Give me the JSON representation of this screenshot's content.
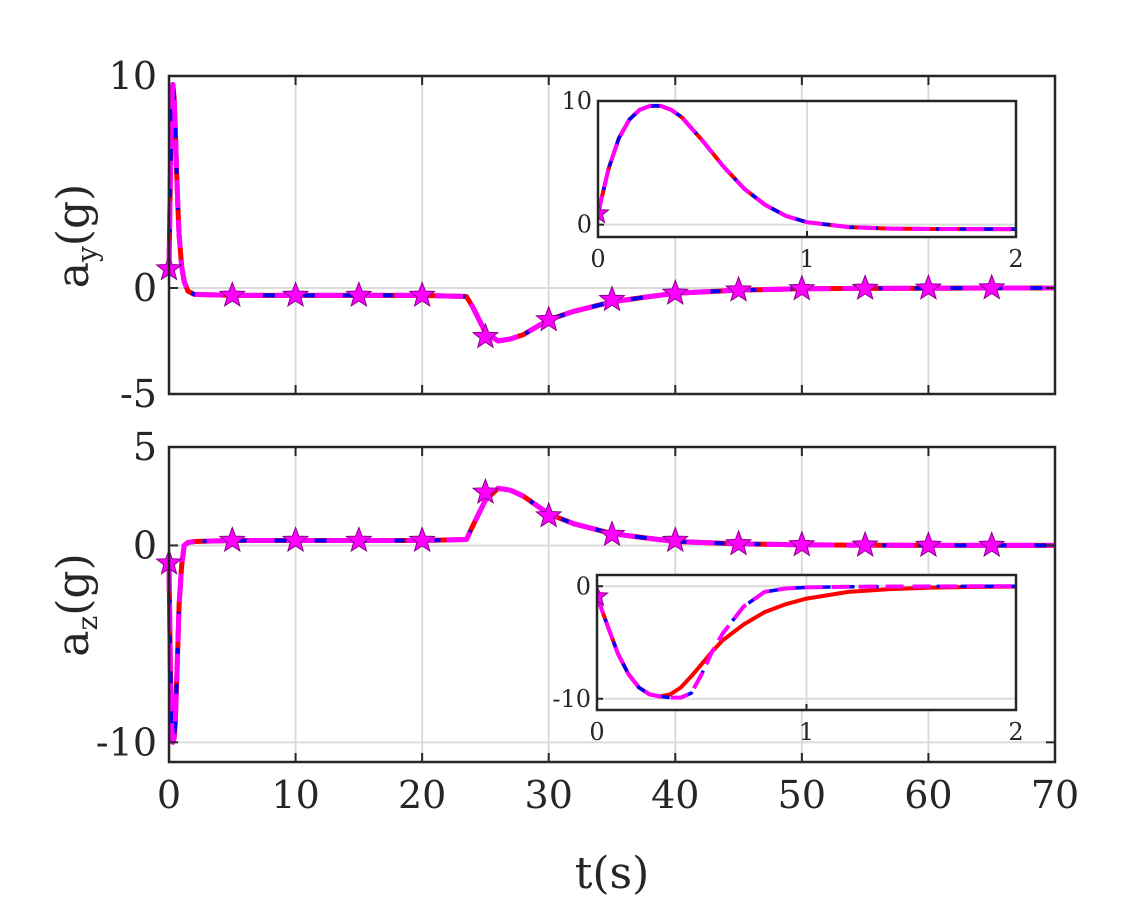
{
  "chart_data": [
    {
      "type": "line",
      "id": "top",
      "ylabel_main": "a",
      "ylabel_sub": "y",
      "ylabel_unit": "(g)",
      "xlim": [
        0,
        70
      ],
      "ylim": [
        -5,
        10
      ],
      "xticks": [
        0,
        10,
        20,
        30,
        40,
        50,
        60,
        70
      ],
      "yticks": [
        -5,
        0,
        10
      ],
      "ytick_labels": [
        "-5",
        "0",
        "10"
      ],
      "grid": true,
      "series": [
        {
          "color": "#ff0000",
          "style": "solid",
          "marker": "none",
          "x": [
            0,
            0.1,
            0.2,
            0.3,
            0.4,
            0.5,
            0.6,
            0.7,
            0.8,
            1,
            1.2,
            1.5,
            2,
            5,
            10,
            15,
            20,
            23.5,
            24,
            25,
            26,
            27,
            28,
            30,
            32,
            35,
            38,
            40,
            45,
            50,
            55,
            60,
            65,
            70
          ],
          "y": [
            0.9,
            5,
            8.5,
            9.6,
            9.0,
            7.5,
            5.5,
            3.8,
            2.5,
            1.0,
            0.3,
            -0.15,
            -0.3,
            -0.35,
            -0.35,
            -0.35,
            -0.35,
            -0.4,
            -0.9,
            -2.1,
            -2.5,
            -2.4,
            -2.2,
            -1.5,
            -1.1,
            -0.65,
            -0.4,
            -0.25,
            -0.1,
            -0.04,
            -0.02,
            -0.01,
            0,
            0
          ]
        },
        {
          "color": "#0000ff",
          "style": "dashed",
          "marker": "none",
          "x": [
            0,
            0.1,
            0.2,
            0.3,
            0.4,
            0.5,
            0.6,
            0.7,
            0.8,
            1,
            1.2,
            1.5,
            2,
            5,
            10,
            15,
            20,
            23.5,
            24,
            25,
            26,
            27,
            28,
            30,
            32,
            35,
            38,
            40,
            45,
            50,
            55,
            60,
            65,
            70
          ],
          "y": [
            0.9,
            5,
            8.5,
            9.6,
            9.0,
            7.5,
            5.5,
            3.8,
            2.5,
            1.0,
            0.3,
            -0.15,
            -0.3,
            -0.35,
            -0.35,
            -0.35,
            -0.35,
            -0.4,
            -0.9,
            -2.1,
            -2.5,
            -2.4,
            -2.2,
            -1.5,
            -1.1,
            -0.65,
            -0.4,
            -0.25,
            -0.1,
            -0.04,
            -0.02,
            -0.01,
            0,
            0
          ]
        },
        {
          "color": "#ff00ff",
          "style": "dashed",
          "marker": "star",
          "x": [
            0,
            0.1,
            0.2,
            0.3,
            0.4,
            0.5,
            0.6,
            0.7,
            0.8,
            1,
            1.2,
            1.5,
            2,
            5,
            10,
            15,
            20,
            23.5,
            24,
            25,
            26,
            27,
            28,
            30,
            32,
            35,
            38,
            40,
            45,
            50,
            55,
            60,
            65,
            70
          ],
          "y": [
            0.9,
            5,
            8.5,
            9.6,
            9.0,
            7.5,
            5.5,
            3.8,
            2.5,
            1.0,
            0.3,
            -0.15,
            -0.3,
            -0.35,
            -0.35,
            -0.35,
            -0.35,
            -0.4,
            -0.9,
            -2.1,
            -2.5,
            -2.4,
            -2.2,
            -1.5,
            -1.1,
            -0.65,
            -0.4,
            -0.25,
            -0.1,
            -0.04,
            -0.02,
            -0.01,
            0,
            0
          ],
          "markers_x": [
            0,
            5,
            10,
            15,
            20,
            25,
            30,
            35,
            40,
            45,
            50,
            55,
            60,
            65
          ],
          "markers_y": [
            0.9,
            -0.35,
            -0.35,
            -0.35,
            -0.35,
            -2.3,
            -1.5,
            -0.55,
            -0.25,
            -0.1,
            -0.04,
            -0.02,
            -0.01,
            0
          ]
        }
      ],
      "inset": {
        "xlim": [
          0,
          2
        ],
        "ylim": [
          -1,
          10
        ],
        "xticks": [
          0,
          1,
          2
        ],
        "yticks": [
          0,
          10
        ],
        "series": [
          {
            "color": "#ff0000",
            "style": "solid",
            "x": [
              0,
              0.05,
              0.1,
              0.15,
              0.2,
              0.25,
              0.3,
              0.35,
              0.4,
              0.5,
              0.6,
              0.7,
              0.8,
              0.9,
              1.0,
              1.2,
              1.4,
              1.6,
              1.8,
              2.0
            ],
            "y": [
              0.9,
              4.5,
              7.0,
              8.5,
              9.3,
              9.6,
              9.6,
              9.3,
              8.7,
              6.8,
              4.7,
              2.9,
              1.6,
              0.7,
              0.2,
              -0.2,
              -0.32,
              -0.35,
              -0.36,
              -0.36
            ]
          },
          {
            "color": "#0000ff",
            "style": "dashed",
            "x": [
              0,
              0.05,
              0.1,
              0.15,
              0.2,
              0.25,
              0.3,
              0.35,
              0.4,
              0.5,
              0.6,
              0.7,
              0.8,
              0.9,
              1.0,
              1.2,
              1.4,
              1.6,
              1.8,
              2.0
            ],
            "y": [
              0.9,
              4.5,
              7.0,
              8.5,
              9.3,
              9.6,
              9.6,
              9.3,
              8.7,
              6.8,
              4.7,
              2.9,
              1.6,
              0.7,
              0.2,
              -0.2,
              -0.32,
              -0.35,
              -0.36,
              -0.36
            ]
          },
          {
            "color": "#ff00ff",
            "style": "dashed",
            "marker": "star",
            "x": [
              0,
              0.05,
              0.1,
              0.15,
              0.2,
              0.25,
              0.3,
              0.35,
              0.4,
              0.5,
              0.6,
              0.7,
              0.8,
              0.9,
              1.0,
              1.2,
              1.4,
              1.6,
              1.8,
              2.0
            ],
            "y": [
              0.9,
              4.5,
              7.0,
              8.5,
              9.3,
              9.6,
              9.6,
              9.3,
              8.7,
              6.8,
              4.7,
              2.9,
              1.6,
              0.7,
              0.2,
              -0.2,
              -0.32,
              -0.35,
              -0.36,
              -0.36
            ],
            "markers_x": [
              0
            ],
            "markers_y": [
              0.9
            ]
          }
        ]
      }
    },
    {
      "type": "line",
      "id": "bottom",
      "ylabel_main": "a",
      "ylabel_sub": "z",
      "ylabel_unit": "(g)",
      "xlabel": "t(s)",
      "xlim": [
        0,
        70
      ],
      "ylim": [
        -11,
        5
      ],
      "xticks": [
        0,
        10,
        20,
        30,
        40,
        50,
        60,
        70
      ],
      "xtick_labels": [
        "0",
        "10",
        "20",
        "30",
        "40",
        "50",
        "60",
        "70"
      ],
      "yticks": [
        -10,
        0,
        5
      ],
      "ytick_labels": [
        "-10",
        "0",
        "5"
      ],
      "grid": true,
      "series": [
        {
          "color": "#ff0000",
          "style": "solid",
          "x": [
            0,
            0.1,
            0.2,
            0.3,
            0.4,
            0.5,
            0.6,
            0.7,
            0.8,
            1,
            1.2,
            1.5,
            2,
            5,
            10,
            15,
            20,
            23.5,
            24,
            25,
            26,
            27,
            28,
            30,
            32,
            35,
            38,
            40,
            45,
            50,
            55,
            60,
            65,
            70
          ],
          "y": [
            -0.9,
            -6,
            -9,
            -10,
            -9.8,
            -9,
            -7,
            -5,
            -3,
            -1,
            0,
            0.15,
            0.2,
            0.25,
            0.25,
            0.25,
            0.25,
            0.3,
            1.0,
            2.3,
            2.9,
            2.8,
            2.5,
            1.6,
            1.1,
            0.6,
            0.35,
            0.2,
            0.08,
            0.03,
            0.01,
            0,
            0,
            0
          ]
        },
        {
          "color": "#0000ff",
          "style": "dashed",
          "x": [
            0,
            0.1,
            0.2,
            0.3,
            0.4,
            0.5,
            0.6,
            0.7,
            0.8,
            1,
            1.2,
            1.5,
            2,
            5,
            10,
            15,
            20,
            23.5,
            24,
            25,
            26,
            27,
            28,
            30,
            32,
            35,
            38,
            40,
            45,
            50,
            55,
            60,
            65,
            70
          ],
          "y": [
            -0.9,
            -6,
            -9,
            -10,
            -9.8,
            -9,
            -7,
            -5,
            -3,
            -1,
            0,
            0.15,
            0.2,
            0.25,
            0.25,
            0.25,
            0.25,
            0.3,
            1.0,
            2.3,
            2.9,
            2.8,
            2.5,
            1.6,
            1.1,
            0.6,
            0.35,
            0.2,
            0.08,
            0.03,
            0.01,
            0,
            0,
            0
          ]
        },
        {
          "color": "#ff00ff",
          "style": "dashed",
          "marker": "star",
          "x": [
            0,
            0.1,
            0.2,
            0.3,
            0.4,
            0.5,
            0.6,
            0.7,
            0.8,
            1,
            1.2,
            1.5,
            2,
            5,
            10,
            15,
            20,
            23.5,
            24,
            25,
            26,
            27,
            28,
            30,
            32,
            35,
            38,
            40,
            45,
            50,
            55,
            60,
            65,
            70
          ],
          "y": [
            -0.9,
            -6,
            -9,
            -10,
            -9.8,
            -9,
            -7,
            -5,
            -3,
            -1,
            0,
            0.15,
            0.2,
            0.25,
            0.25,
            0.25,
            0.25,
            0.3,
            1.0,
            2.3,
            2.9,
            2.8,
            2.5,
            1.6,
            1.1,
            0.6,
            0.35,
            0.2,
            0.08,
            0.03,
            0.01,
            0,
            0,
            0
          ],
          "markers_x": [
            0,
            5,
            10,
            15,
            20,
            25,
            30,
            35,
            40,
            45,
            50,
            55,
            60,
            65
          ],
          "markers_y": [
            -0.9,
            0.25,
            0.25,
            0.25,
            0.25,
            2.7,
            1.5,
            0.55,
            0.25,
            0.08,
            0.03,
            0.01,
            0,
            0
          ]
        }
      ],
      "inset": {
        "xlim": [
          0,
          2
        ],
        "ylim": [
          -11,
          1
        ],
        "xticks": [
          0,
          1,
          2
        ],
        "yticks": [
          -10,
          0
        ],
        "ytick_labels": [
          "-10",
          "0"
        ],
        "series": [
          {
            "color": "#ff0000",
            "style": "solid",
            "x": [
              0,
              0.05,
              0.1,
              0.15,
              0.2,
              0.25,
              0.3,
              0.35,
              0.4,
              0.45,
              0.5,
              0.55,
              0.6,
              0.7,
              0.8,
              0.9,
              1.0,
              1.2,
              1.4,
              1.6,
              1.8,
              2.0
            ],
            "y": [
              -0.9,
              -3.5,
              -6.0,
              -7.8,
              -9.0,
              -9.6,
              -9.8,
              -9.6,
              -9.0,
              -8.0,
              -6.9,
              -5.8,
              -4.8,
              -3.4,
              -2.3,
              -1.6,
              -1.1,
              -0.5,
              -0.25,
              -0.12,
              -0.06,
              -0.03
            ]
          },
          {
            "color": "#0000ff",
            "style": "dashed",
            "x": [
              0,
              0.05,
              0.1,
              0.15,
              0.2,
              0.25,
              0.3,
              0.35,
              0.4,
              0.45,
              0.5,
              0.55,
              0.6,
              0.7,
              0.8,
              0.9,
              1.0,
              1.2,
              1.4,
              1.6,
              1.8,
              2.0
            ],
            "y": [
              -0.9,
              -3.5,
              -6.0,
              -7.8,
              -9.0,
              -9.6,
              -9.8,
              -9.9,
              -9.9,
              -9.5,
              -7.8,
              -5.8,
              -4.2,
              -1.8,
              -0.5,
              -0.2,
              -0.1,
              -0.05,
              -0.02,
              -0.01,
              0,
              0
            ]
          },
          {
            "color": "#ff00ff",
            "style": "dashed",
            "marker": "star",
            "x": [
              0,
              0.05,
              0.1,
              0.15,
              0.2,
              0.25,
              0.3,
              0.35,
              0.4,
              0.45,
              0.5,
              0.55,
              0.6,
              0.7,
              0.8,
              0.9,
              1.0,
              1.2,
              1.4,
              1.6,
              1.8,
              2.0
            ],
            "y": [
              -0.9,
              -3.5,
              -6.0,
              -7.8,
              -9.0,
              -9.6,
              -9.8,
              -9.9,
              -9.9,
              -9.5,
              -7.8,
              -5.8,
              -4.2,
              -1.8,
              -0.5,
              -0.2,
              -0.1,
              -0.05,
              -0.02,
              -0.01,
              0,
              0
            ],
            "markers_x": [
              0
            ],
            "markers_y": [
              -0.9
            ]
          }
        ]
      }
    }
  ]
}
